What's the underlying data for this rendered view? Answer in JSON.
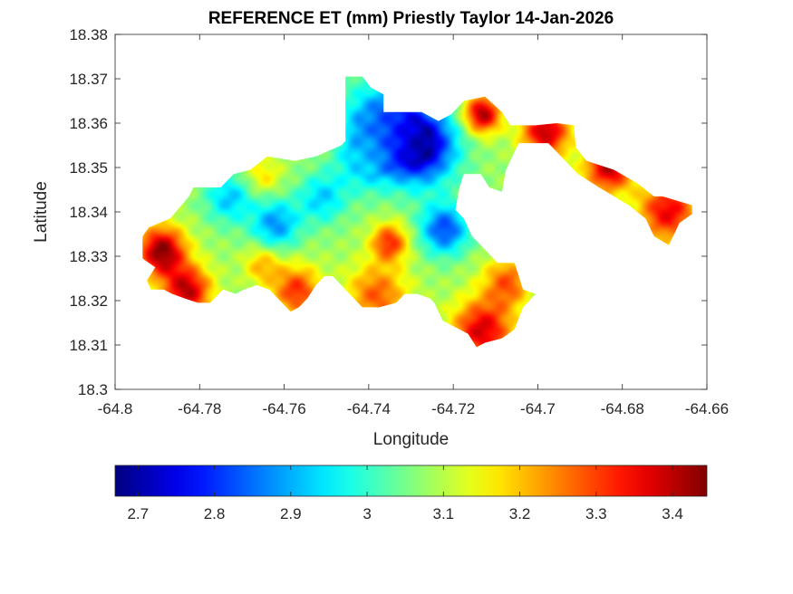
{
  "chart_data": {
    "type": "heatmap",
    "title": "REFERENCE ET (mm) Priestly Taylor 14-Jan-2026",
    "xlabel": "Longitude",
    "ylabel": "Latitude",
    "xlim": [
      -64.8,
      -64.66
    ],
    "ylim": [
      18.3,
      18.38
    ],
    "x_ticks": [
      -64.8,
      -64.78,
      -64.76,
      -64.74,
      -64.72,
      -64.7,
      -64.68,
      -64.66
    ],
    "x_tick_labels": [
      "-64.8",
      "-64.78",
      "-64.76",
      "-64.74",
      "-64.72",
      "-64.7",
      "-64.68",
      "-64.66"
    ],
    "y_ticks": [
      18.3,
      18.31,
      18.32,
      18.33,
      18.34,
      18.35,
      18.36,
      18.37,
      18.38
    ],
    "y_tick_labels": [
      "18.3",
      "18.31",
      "18.32",
      "18.33",
      "18.34",
      "18.35",
      "18.36",
      "18.37",
      "18.38"
    ],
    "grid": false,
    "colormap": "jet",
    "colorbar": {
      "orientation": "horizontal",
      "placement": "bottom",
      "range": [
        2.67,
        3.445
      ],
      "ticks": [
        2.7,
        2.8,
        2.9,
        3.0,
        3.1,
        3.2,
        3.3,
        3.4
      ],
      "tick_labels": [
        "2.7",
        "2.8",
        "2.9",
        "3",
        "3.1",
        "3.2",
        "3.3",
        "3.4"
      ]
    },
    "field": {
      "base_value": 3.08,
      "features": [
        {
          "lon": -64.728,
          "lat": 18.355,
          "value": 2.67,
          "spread": 0.006
        },
        {
          "lon": -64.737,
          "lat": 18.36,
          "value": 2.85,
          "spread": 0.006
        },
        {
          "lon": -64.722,
          "lat": 18.336,
          "value": 2.82,
          "spread": 0.004
        },
        {
          "lon": -64.762,
          "lat": 18.337,
          "value": 2.88,
          "spread": 0.004
        },
        {
          "lon": -64.773,
          "lat": 18.343,
          "value": 2.92,
          "spread": 0.004
        },
        {
          "lon": -64.751,
          "lat": 18.343,
          "value": 2.93,
          "spread": 0.004
        },
        {
          "lon": -64.741,
          "lat": 18.351,
          "value": 2.96,
          "spread": 0.005
        },
        {
          "lon": -64.745,
          "lat": 18.368,
          "value": 3.05,
          "spread": 0.004
        },
        {
          "lon": -64.789,
          "lat": 18.331,
          "value": 3.44,
          "spread": 0.004
        },
        {
          "lon": -64.783,
          "lat": 18.322,
          "value": 3.4,
          "spread": 0.004
        },
        {
          "lon": -64.735,
          "lat": 18.333,
          "value": 3.32,
          "spread": 0.003
        },
        {
          "lon": -64.757,
          "lat": 18.322,
          "value": 3.32,
          "spread": 0.004
        },
        {
          "lon": -64.738,
          "lat": 18.321,
          "value": 3.28,
          "spread": 0.005
        },
        {
          "lon": -64.713,
          "lat": 18.313,
          "value": 3.38,
          "spread": 0.005
        },
        {
          "lon": -64.707,
          "lat": 18.324,
          "value": 3.28,
          "spread": 0.004
        },
        {
          "lon": -64.713,
          "lat": 18.362,
          "value": 3.42,
          "spread": 0.003
        },
        {
          "lon": -64.698,
          "lat": 18.358,
          "value": 3.4,
          "spread": 0.004
        },
        {
          "lon": -64.683,
          "lat": 18.35,
          "value": 3.4,
          "spread": 0.004
        },
        {
          "lon": -64.669,
          "lat": 18.34,
          "value": 3.36,
          "spread": 0.005
        },
        {
          "lon": -64.765,
          "lat": 18.348,
          "value": 3.18,
          "spread": 0.003
        },
        {
          "lon": -64.765,
          "lat": 18.328,
          "value": 3.22,
          "spread": 0.003
        }
      ]
    },
    "land_outline": [
      [
        -64.792,
        18.3365
      ],
      [
        -64.787,
        18.3385
      ],
      [
        -64.7825,
        18.3435
      ],
      [
        -64.7815,
        18.3455
      ],
      [
        -64.775,
        18.3455
      ],
      [
        -64.772,
        18.3485
      ],
      [
        -64.768,
        18.3495
      ],
      [
        -64.764,
        18.3525
      ],
      [
        -64.7575,
        18.3515
      ],
      [
        -64.7525,
        18.3525
      ],
      [
        -64.7465,
        18.355
      ],
      [
        -64.7455,
        18.356
      ],
      [
        -64.7455,
        18.3705
      ],
      [
        -64.7415,
        18.3705
      ],
      [
        -64.7395,
        18.368
      ],
      [
        -64.7365,
        18.3665
      ],
      [
        -64.7365,
        18.3625
      ],
      [
        -64.7275,
        18.3625
      ],
      [
        -64.7235,
        18.3605
      ],
      [
        -64.7205,
        18.362
      ],
      [
        -64.7175,
        18.365
      ],
      [
        -64.7125,
        18.366
      ],
      [
        -64.7085,
        18.3625
      ],
      [
        -64.7065,
        18.3595
      ],
      [
        -64.7005,
        18.3595
      ],
      [
        -64.6955,
        18.36
      ],
      [
        -64.6915,
        18.3595
      ],
      [
        -64.691,
        18.3545
      ],
      [
        -64.6885,
        18.3515
      ],
      [
        -64.682,
        18.3495
      ],
      [
        -64.6765,
        18.3465
      ],
      [
        -64.6725,
        18.3435
      ],
      [
        -64.6705,
        18.3435
      ],
      [
        -64.6635,
        18.3415
      ],
      [
        -64.6635,
        18.3395
      ],
      [
        -64.6665,
        18.3375
      ],
      [
        -64.669,
        18.3325
      ],
      [
        -64.6725,
        18.3345
      ],
      [
        -64.6745,
        18.3385
      ],
      [
        -64.6785,
        18.3415
      ],
      [
        -64.6855,
        18.3455
      ],
      [
        -64.6905,
        18.3485
      ],
      [
        -64.6975,
        18.3555
      ],
      [
        -64.7045,
        18.3555
      ],
      [
        -64.7075,
        18.3495
      ],
      [
        -64.7085,
        18.3445
      ],
      [
        -64.7115,
        18.3455
      ],
      [
        -64.7135,
        18.3485
      ],
      [
        -64.7175,
        18.3485
      ],
      [
        -64.7185,
        18.3455
      ],
      [
        -64.7195,
        18.3405
      ],
      [
        -64.7175,
        18.3385
      ],
      [
        -64.7155,
        18.3345
      ],
      [
        -64.7135,
        18.3325
      ],
      [
        -64.7095,
        18.3285
      ],
      [
        -64.7055,
        18.3285
      ],
      [
        -64.7035,
        18.3225
      ],
      [
        -64.7005,
        18.3215
      ],
      [
        -64.7035,
        18.3185
      ],
      [
        -64.7055,
        18.3135
      ],
      [
        -64.7085,
        18.3115
      ],
      [
        -64.7125,
        18.3105
      ],
      [
        -64.7145,
        18.3095
      ],
      [
        -64.7165,
        18.3125
      ],
      [
        -64.7185,
        18.3135
      ],
      [
        -64.7205,
        18.3145
      ],
      [
        -64.7225,
        18.3155
      ],
      [
        -64.7245,
        18.3195
      ],
      [
        -64.7255,
        18.3205
      ],
      [
        -64.7285,
        18.3215
      ],
      [
        -64.7315,
        18.3215
      ],
      [
        -64.7335,
        18.3195
      ],
      [
        -64.7375,
        18.3185
      ],
      [
        -64.7415,
        18.3185
      ],
      [
        -64.7435,
        18.3205
      ],
      [
        -64.7465,
        18.3235
      ],
      [
        -64.7485,
        18.3255
      ],
      [
        -64.7505,
        18.3255
      ],
      [
        -64.7525,
        18.3235
      ],
      [
        -64.7545,
        18.3205
      ],
      [
        -64.7565,
        18.3185
      ],
      [
        -64.7585,
        18.3175
      ],
      [
        -64.7605,
        18.3195
      ],
      [
        -64.7635,
        18.3225
      ],
      [
        -64.7665,
        18.3235
      ],
      [
        -64.7695,
        18.3225
      ],
      [
        -64.7715,
        18.3215
      ],
      [
        -64.7745,
        18.3225
      ],
      [
        -64.7775,
        18.3195
      ],
      [
        -64.7805,
        18.3195
      ],
      [
        -64.7835,
        18.3205
      ],
      [
        -64.7865,
        18.3215
      ],
      [
        -64.7885,
        18.3225
      ],
      [
        -64.7915,
        18.3225
      ],
      [
        -64.7925,
        18.3245
      ],
      [
        -64.7905,
        18.3275
      ],
      [
        -64.7935,
        18.3295
      ],
      [
        -64.7935,
        18.3345
      ]
    ]
  }
}
